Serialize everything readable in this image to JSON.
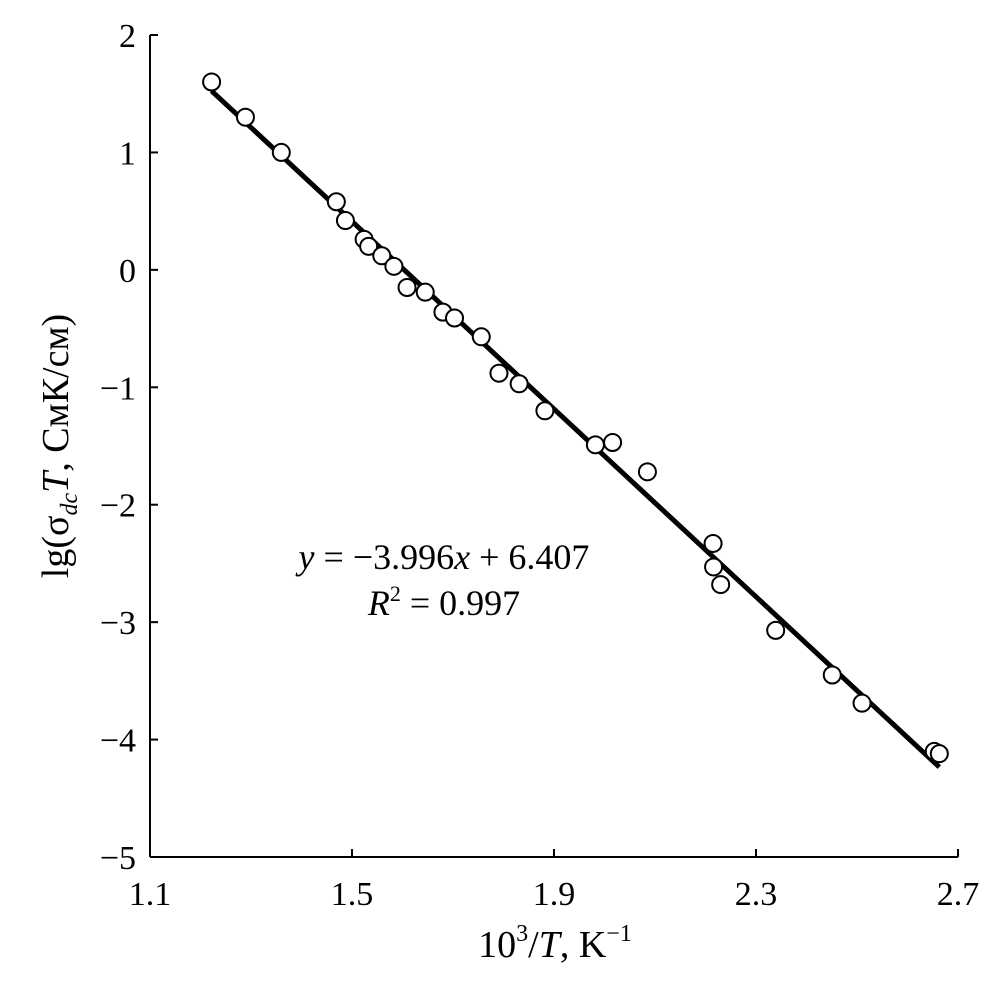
{
  "chart_data": {
    "type": "scatter",
    "title": "",
    "xlabel": {
      "base": "10",
      "exp": "3",
      "slash": "/",
      "var": "T",
      "unit": ", K",
      "unit_exp": "−1"
    },
    "ylabel": {
      "prefix": "lg(σ",
      "sub": "dc",
      "var": "T",
      "suffix": ", СмК/см)"
    },
    "xlim": [
      1.1,
      2.7
    ],
    "ylim": [
      -5,
      2
    ],
    "xticks": [
      1.1,
      1.5,
      1.9,
      2.3,
      2.7
    ],
    "xtick_labels": [
      "1.1",
      "1.5",
      "1.9",
      "2.3",
      "2.7"
    ],
    "yticks": [
      -5,
      -4,
      -3,
      -2,
      -1,
      0,
      1,
      2
    ],
    "ytick_labels": [
      "−5",
      "−4",
      "−3",
      "−2",
      "−1",
      "0",
      "1",
      "2"
    ],
    "grid": false,
    "legend": "none",
    "series": [
      {
        "marker": "open-circle",
        "x": [
          1.222,
          1.289,
          1.36,
          1.469,
          1.487,
          1.524,
          1.533,
          1.559,
          1.583,
          1.609,
          1.645,
          1.68,
          1.703,
          1.756,
          1.791,
          1.831,
          1.882,
          1.982,
          2.016,
          2.085,
          2.215,
          2.216,
          2.23,
          2.339,
          2.451,
          2.51,
          2.653,
          2.663
        ],
        "y": [
          1.6,
          1.3,
          1.0,
          0.58,
          0.42,
          0.26,
          0.2,
          0.12,
          0.03,
          -0.15,
          -0.19,
          -0.36,
          -0.41,
          -0.57,
          -0.88,
          -0.97,
          -1.2,
          -1.49,
          -1.47,
          -1.72,
          -2.33,
          -2.53,
          -2.68,
          -3.07,
          -3.45,
          -3.69,
          -4.1,
          -4.12
        ]
      }
    ],
    "fit": {
      "slope": -3.996,
      "intercept": 6.407,
      "x_range": [
        1.222,
        2.663
      ]
    },
    "annotation": {
      "eq_var": "y",
      "eq_body": " = −3.996",
      "eq_x": "x",
      "eq_tail": " + 6.407",
      "r2_var": "R",
      "r2_exp": "2",
      "r2_body": " = 0.997"
    }
  }
}
